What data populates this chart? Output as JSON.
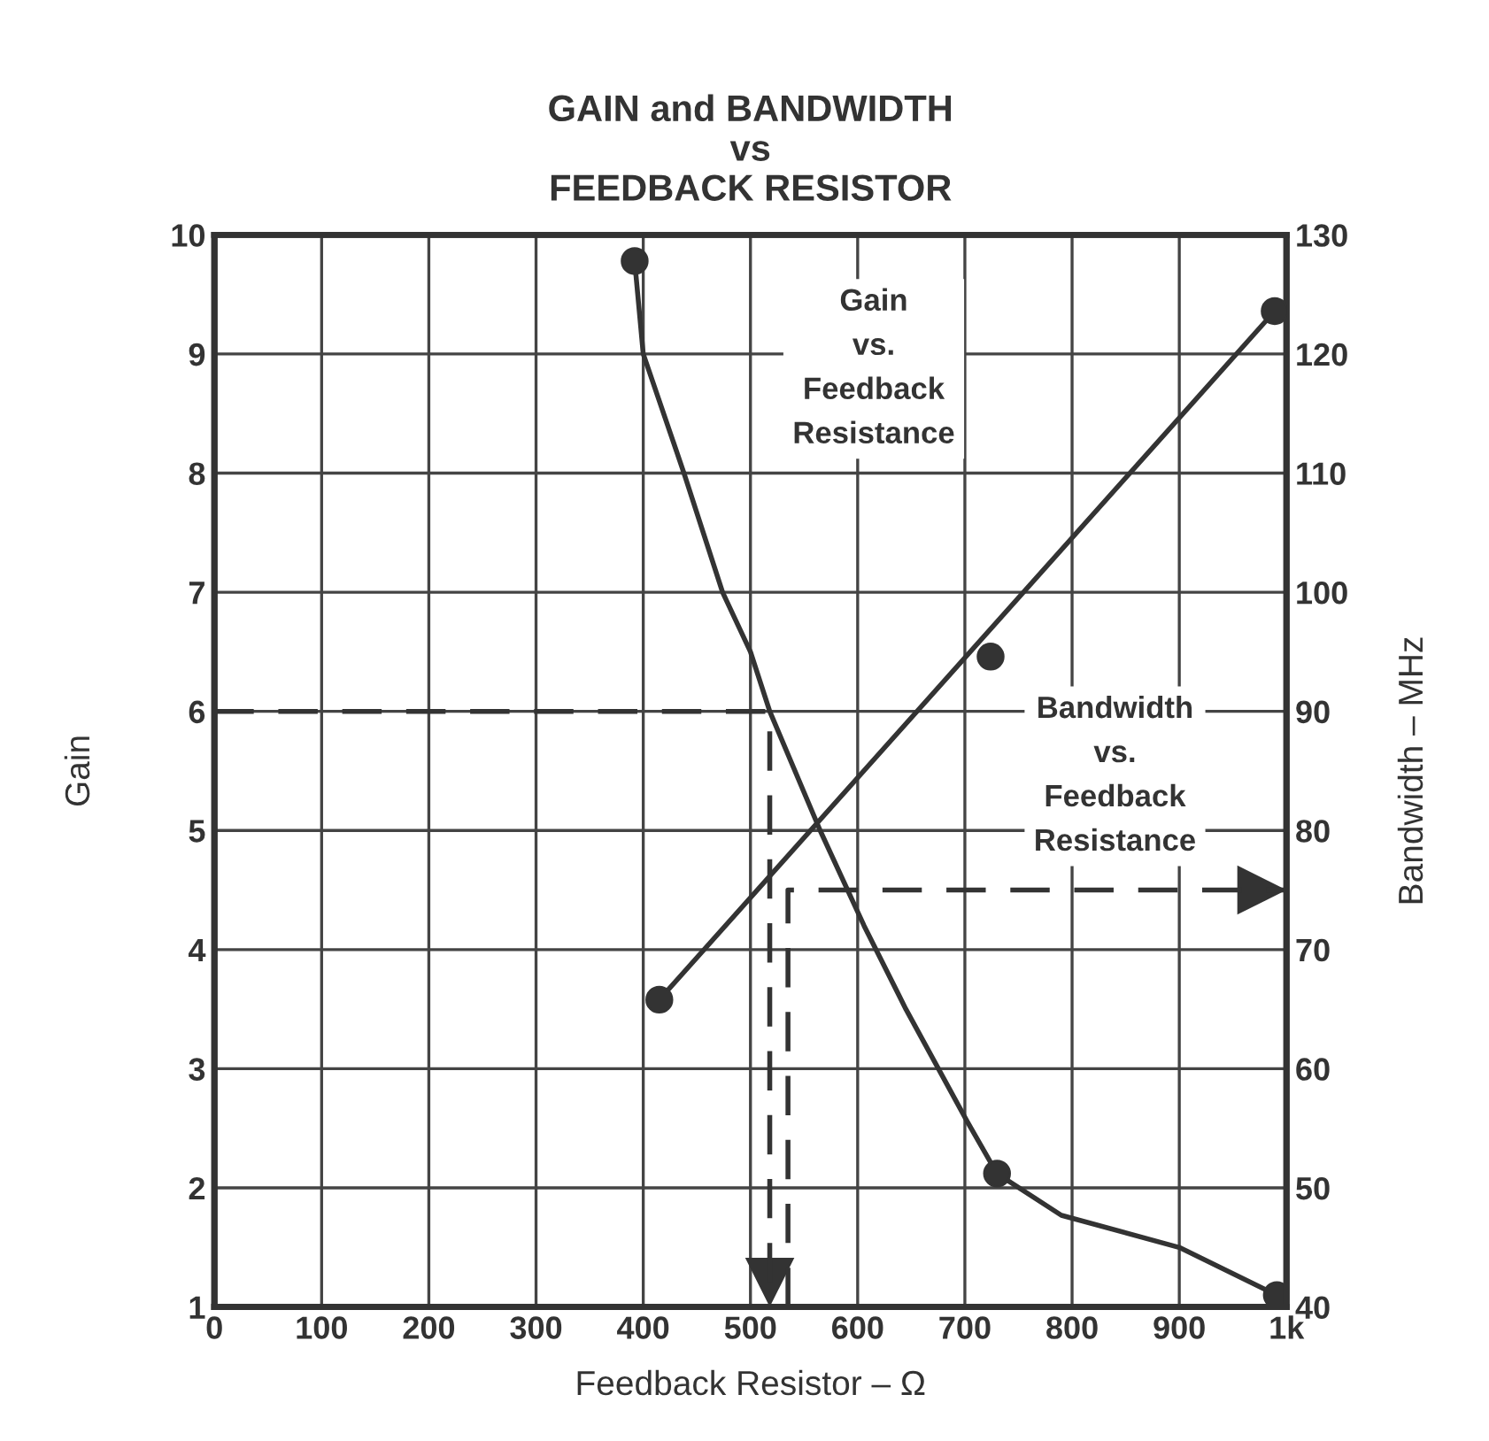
{
  "chart_data": {
    "type": "line",
    "title": "GAIN and BANDWIDTH\nvs\nFEEDBACK RESISTOR",
    "xlabel": "Feedback Resistor – Ω",
    "ylabel": "Gain",
    "y2label": "Bandwidth – MHz",
    "xlim": [
      0,
      1000
    ],
    "xticks": [
      0,
      100,
      200,
      300,
      400,
      500,
      600,
      700,
      800,
      900,
      {
        "value": 1000,
        "label": "1k"
      }
    ],
    "ylim": [
      1,
      10
    ],
    "yticks": [
      1,
      2,
      3,
      4,
      5,
      6,
      7,
      8,
      9,
      10
    ],
    "y2lim": [
      40,
      130
    ],
    "y2ticks": [
      40,
      50,
      60,
      70,
      80,
      90,
      100,
      110,
      120,
      130
    ],
    "grid": true,
    "legend": false,
    "series": [
      {
        "color": "#333333",
        "marker": "none",
        "line_style": "solid",
        "x": [
          392,
          400,
          438,
          474,
          500,
          518,
          565,
          606,
          645,
          702,
          730,
          790,
          900,
          991
        ],
        "values": [
          9.78,
          9.0,
          8.0,
          7.0,
          6.5,
          6.0,
          5.0,
          4.2,
          3.5,
          2.56,
          2.12,
          1.77,
          1.5,
          1.1
        ]
      },
      {
        "type": "scatter",
        "color": "#333333",
        "marker": "circle",
        "x": [
          392,
          730,
          991
        ],
        "values": [
          9.78,
          2.12,
          1.1
        ]
      },
      {
        "axis": "y2",
        "color": "#333333",
        "marker": "none",
        "line_style": "solid",
        "x": [
          415,
          989
        ],
        "values": [
          65.8,
          123.6
        ]
      },
      {
        "type": "scatter",
        "axis": "y2",
        "color": "#333333",
        "marker": "circle",
        "x": [
          415,
          724,
          989
        ],
        "values": [
          65.8,
          94.6,
          123.6
        ]
      },
      {
        "color": "#333333",
        "marker": "none",
        "line_style": "dashed",
        "x": [
          0,
          518,
          518
        ],
        "values": [
          6,
          6,
          1
        ]
      },
      {
        "axis": "y2",
        "color": "#333333",
        "marker": "none",
        "line_style": "dashed",
        "x": [
          535,
          535,
          1000
        ],
        "values": [
          40,
          75,
          75
        ]
      }
    ],
    "annotations": [
      "Gain\nvs.\nFeedback\nResistance",
      "Bandwidth\nvs.\nFeedback\nResistance"
    ]
  }
}
